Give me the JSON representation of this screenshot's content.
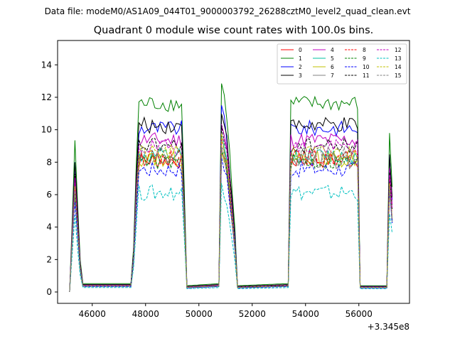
{
  "suptitle": "Data file: modeM0/AS1A09_044T01_9000003792_26288cztM0_level2_quad_clean.evt",
  "chart_data": {
    "type": "line",
    "title": "Quadrant 0 module wise count rates with 100.0s bins.",
    "xlabel": "",
    "ylabel": "",
    "x_offset_label": "+3.345e8",
    "xlim": [
      44700,
      57900
    ],
    "ylim": [
      -0.7,
      15.5
    ],
    "xticks": [
      46000,
      48000,
      50000,
      52000,
      54000,
      56000
    ],
    "yticks": [
      0,
      2,
      4,
      6,
      8,
      10,
      12,
      14
    ],
    "legend_position": "top-right",
    "legend_columns": 4,
    "envelope": [
      [
        45150,
        0
      ],
      [
        45350,
        0.7
      ],
      [
        45550,
        0.15
      ],
      [
        45650,
        0.04
      ],
      [
        47450,
        0.04
      ],
      [
        47600,
        0.3
      ],
      [
        47700,
        0.9
      ],
      [
        49350,
        0.9
      ],
      [
        49450,
        0.5
      ],
      [
        49550,
        0.03
      ],
      [
        50750,
        0.04
      ],
      [
        50850,
        1.0
      ],
      [
        51050,
        0.85
      ],
      [
        51350,
        0.3
      ],
      [
        51450,
        0.03
      ],
      [
        53350,
        0.04
      ],
      [
        53450,
        0.9
      ],
      [
        55950,
        0.9
      ],
      [
        56050,
        0.03
      ],
      [
        57050,
        0.03
      ],
      [
        57100,
        0.85
      ],
      [
        57250,
        0.5
      ]
    ],
    "series": [
      {
        "name": "0",
        "color": "#ff0000",
        "dash": "solid",
        "level": 9.0
      },
      {
        "name": "1",
        "color": "#008000",
        "dash": "solid",
        "level": 12.9
      },
      {
        "name": "2",
        "color": "#0000ff",
        "dash": "solid",
        "level": 11.2
      },
      {
        "name": "3",
        "color": "#000000",
        "dash": "solid",
        "level": 11.4
      },
      {
        "name": "4",
        "color": "#c000c0",
        "dash": "solid",
        "level": 10.4
      },
      {
        "name": "5",
        "color": "#00c0a0",
        "dash": "solid",
        "level": 9.3
      },
      {
        "name": "6",
        "color": "#c0c000",
        "dash": "solid",
        "level": 9.1
      },
      {
        "name": "7",
        "color": "#808080",
        "dash": "solid",
        "level": 9.0
      },
      {
        "name": "8",
        "color": "#ff0000",
        "dash": "dashed",
        "level": 9.2
      },
      {
        "name": "9",
        "color": "#008000",
        "dash": "dashed",
        "level": 8.9
      },
      {
        "name": "10",
        "color": "#0000ff",
        "dash": "dashed",
        "level": 8.4
      },
      {
        "name": "11",
        "color": "#000000",
        "dash": "dashed",
        "level": 10.0
      },
      {
        "name": "12",
        "color": "#c000c0",
        "dash": "dashed",
        "level": 9.9
      },
      {
        "name": "13",
        "color": "#00c0c0",
        "dash": "dashed",
        "level": 6.8
      },
      {
        "name": "14",
        "color": "#c0c000",
        "dash": "dashed",
        "level": 9.5
      },
      {
        "name": "15",
        "color": "#808080",
        "dash": "dashed",
        "level": 9.4
      }
    ]
  }
}
